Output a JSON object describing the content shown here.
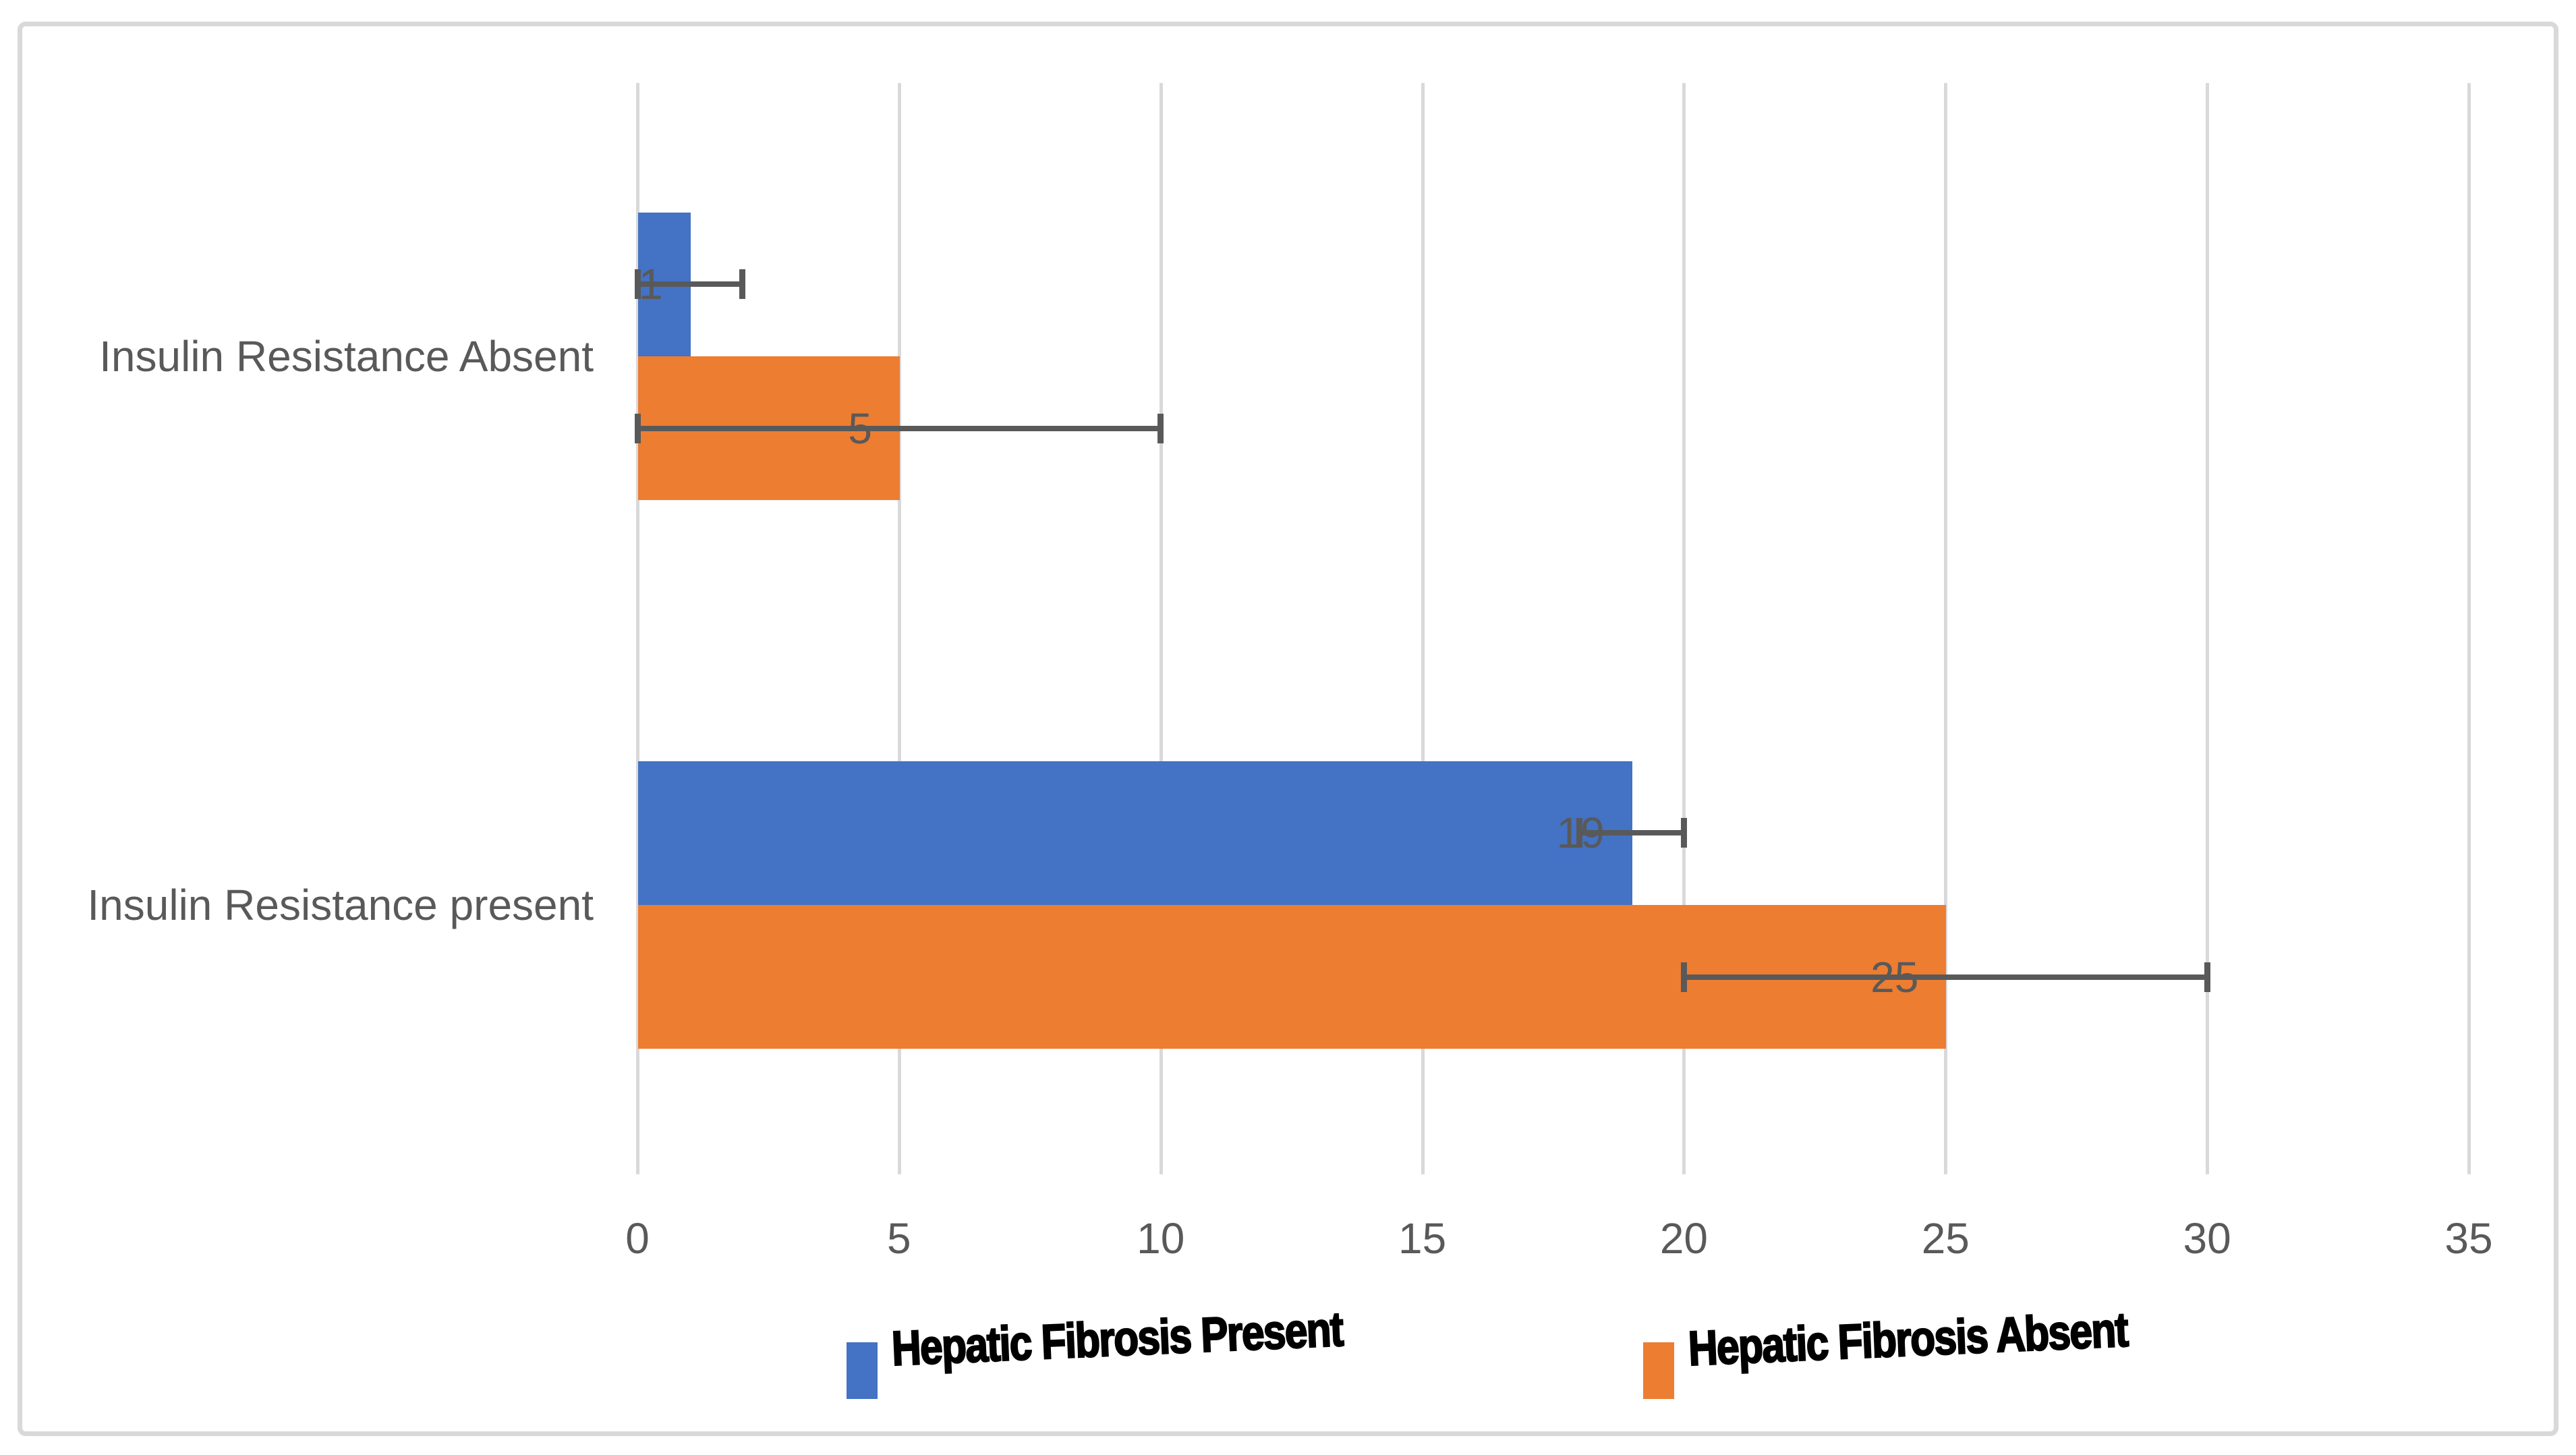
{
  "chart_data": {
    "type": "bar",
    "orientation": "horizontal",
    "categories": [
      "Insulin Resistance Absent",
      "Insulin Resistance present"
    ],
    "series": [
      {
        "name": "Hepatic Fibrosis Present",
        "color": "#4472C4",
        "values": [
          1,
          19
        ],
        "error_bars": [
          1,
          1
        ]
      },
      {
        "name": "Hepatic Fibrosis Absent",
        "color": "#ED7D31",
        "values": [
          5,
          25
        ],
        "error_bars": [
          5,
          5
        ]
      }
    ],
    "data_labels": [
      "1",
      "5",
      "19",
      "25"
    ],
    "xlim": [
      0,
      35
    ],
    "xticks": [
      0,
      5,
      10,
      15,
      20,
      25,
      30,
      35
    ],
    "grid": true,
    "legend_position": "bottom"
  },
  "colors": {
    "background": "#FFFFFF",
    "frame_border": "#D9D9D9",
    "gridline": "#D9D9D9",
    "axis_text": "#595959",
    "category_text": "#595959",
    "data_label_text": "#595959",
    "error_bar": "#595959",
    "legend_text": "#000000"
  }
}
